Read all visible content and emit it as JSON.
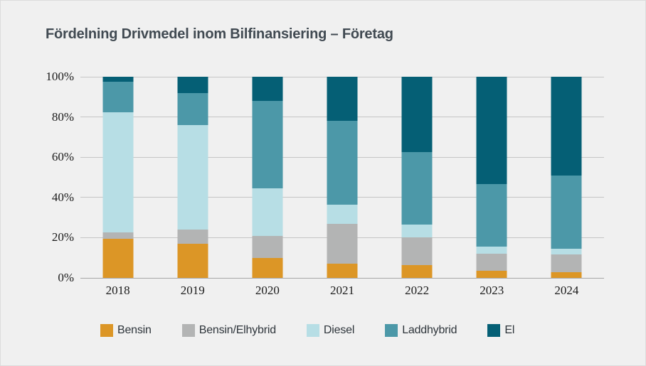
{
  "title": "Fördelning Drivmedel inom Bilfinansiering – Företag",
  "chart_data": {
    "type": "bar",
    "stacked": true,
    "percent_stacked": true,
    "title": "Fördelning Drivmedel inom Bilfinansiering – Företag",
    "categories": [
      "2018",
      "2019",
      "2020",
      "2021",
      "2022",
      "2023",
      "2024"
    ],
    "series": [
      {
        "name": "Bensin",
        "color": "#dc9626",
        "values": [
          19.5,
          17,
          10,
          7,
          6.5,
          3.5,
          3
        ]
      },
      {
        "name": "Bensin/Elhybrid",
        "color": "#b3b4b4",
        "values": [
          3,
          7,
          11,
          20,
          13.5,
          8.5,
          8.5
        ]
      },
      {
        "name": "Diesel",
        "color": "#b7dee5",
        "values": [
          60,
          52,
          23.5,
          9.5,
          6.5,
          3.5,
          3
        ]
      },
      {
        "name": "Laddhybrid",
        "color": "#4c98a8",
        "values": [
          15,
          16,
          43.5,
          41.5,
          36,
          31,
          36.5
        ]
      },
      {
        "name": "El",
        "color": "#055f75",
        "values": [
          2.5,
          8,
          12,
          22,
          37.5,
          53.5,
          49
        ]
      }
    ],
    "y_ticks": [
      {
        "label": "100%",
        "value": 100
      },
      {
        "label": "80%",
        "value": 80
      },
      {
        "label": "60%",
        "value": 60
      },
      {
        "label": "40%",
        "value": 40
      },
      {
        "label": "20%",
        "value": 20
      },
      {
        "label": "0%",
        "value": 0
      }
    ],
    "ylim": [
      0,
      100
    ],
    "xlabel": "",
    "ylabel": "",
    "grid": true,
    "legend_position": "bottom",
    "background_color": "#f0f0f0",
    "title_color": "#414a52"
  }
}
